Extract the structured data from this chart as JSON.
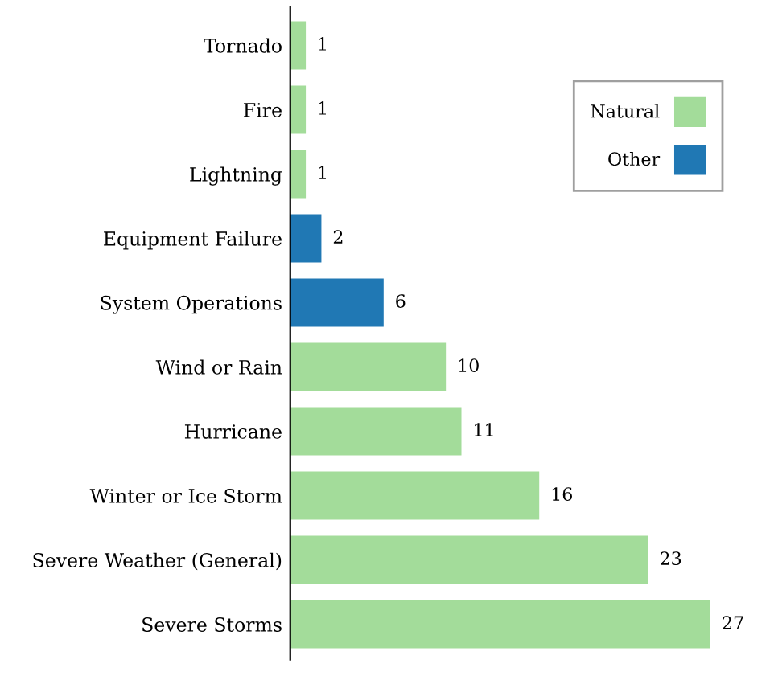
{
  "chart_data": {
    "type": "bar",
    "orientation": "horizontal",
    "data_labels": true,
    "tick_labels": "y",
    "legend": "top right",
    "grid": false,
    "categories": [
      "Tornado",
      "Fire",
      "Lightning",
      "Equipment Failure",
      "System Operations",
      "Wind or Rain",
      "Hurricane",
      "Winter or Ice Storm",
      "Severe Weather (General)",
      "Severe Storms"
    ],
    "series": [
      {
        "name": "Natural",
        "color": "#a3dc9a",
        "values": [
          1,
          1,
          1,
          null,
          null,
          10,
          11,
          16,
          23,
          27
        ]
      },
      {
        "name": "Other",
        "color": "#2078b4",
        "values": [
          null,
          null,
          null,
          2,
          6,
          null,
          null,
          null,
          null,
          null
        ]
      }
    ]
  }
}
